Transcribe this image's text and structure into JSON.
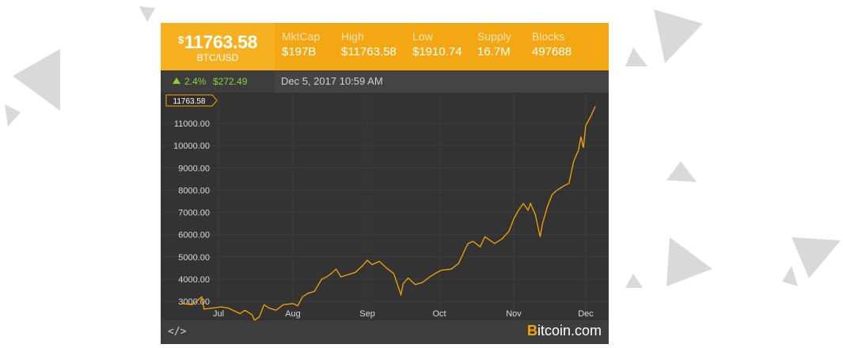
{
  "ticker": {
    "currency_symbol": "$",
    "price": "11763.58",
    "pair": "BTC/USD",
    "change_pct": "2.4%",
    "change_amt": "$272.49",
    "date": "Dec 5, 2017 10:59 AM",
    "stats": [
      {
        "label": "MktCap",
        "value": "$197B"
      },
      {
        "label": "High",
        "value": "$11763.58"
      },
      {
        "label": "Low",
        "value": "$1910.74"
      },
      {
        "label": "Supply",
        "value": "16.7M"
      },
      {
        "label": "Blocks",
        "value": "497688"
      }
    ]
  },
  "footer": {
    "embed_label": "</>",
    "brand_first": "B",
    "brand_rest": "itcoin.com"
  },
  "colors": {
    "accent": "#f3a712",
    "line": "#f7a600",
    "up": "#8fd034",
    "panel": "#333333"
  },
  "chart_data": {
    "type": "line",
    "title": "",
    "xlabel": "",
    "ylabel": "",
    "current_label": "11763.58",
    "y_ticks": [
      "3000.00",
      "4000.00",
      "5000.00",
      "6000.00",
      "7000.00",
      "8000.00",
      "9000.00",
      "10000.00",
      "11000.00"
    ],
    "x_labels": [
      "Jul",
      "Aug",
      "Sep",
      "Oct",
      "Nov",
      "Dec"
    ],
    "ylim": [
      2500,
      12000
    ],
    "grid": true,
    "series": [
      {
        "values": [
          [
            "2017-06-16",
            2900
          ],
          [
            "2017-06-20",
            2850
          ],
          [
            "2017-06-24",
            3200
          ],
          [
            "2017-06-25",
            2650
          ],
          [
            "2017-06-29",
            2700
          ],
          [
            "2017-07-02",
            2750
          ],
          [
            "2017-07-05",
            2700
          ],
          [
            "2017-07-10",
            2450
          ],
          [
            "2017-07-12",
            2600
          ],
          [
            "2017-07-15",
            2400
          ],
          [
            "2017-07-16",
            2000
          ],
          [
            "2017-07-18",
            2300
          ],
          [
            "2017-07-20",
            2850
          ],
          [
            "2017-07-22",
            2700
          ],
          [
            "2017-07-25",
            2600
          ],
          [
            "2017-07-28",
            2850
          ],
          [
            "2017-08-01",
            2900
          ],
          [
            "2017-08-03",
            2800
          ],
          [
            "2017-08-05",
            3200
          ],
          [
            "2017-08-07",
            3350
          ],
          [
            "2017-08-10",
            3450
          ],
          [
            "2017-08-13",
            4000
          ],
          [
            "2017-08-15",
            4100
          ],
          [
            "2017-08-17",
            4250
          ],
          [
            "2017-08-19",
            4450
          ],
          [
            "2017-08-21",
            4100
          ],
          [
            "2017-08-24",
            4200
          ],
          [
            "2017-08-27",
            4300
          ],
          [
            "2017-08-30",
            4600
          ],
          [
            "2017-09-01",
            4850
          ],
          [
            "2017-09-03",
            4650
          ],
          [
            "2017-09-06",
            4800
          ],
          [
            "2017-09-09",
            4500
          ],
          [
            "2017-09-12",
            4250
          ],
          [
            "2017-09-15",
            3300
          ],
          [
            "2017-09-16",
            3800
          ],
          [
            "2017-09-18",
            4050
          ],
          [
            "2017-09-21",
            3750
          ],
          [
            "2017-09-24",
            3850
          ],
          [
            "2017-09-27",
            4100
          ],
          [
            "2017-09-30",
            4300
          ],
          [
            "2017-10-02",
            4400
          ],
          [
            "2017-10-06",
            4450
          ],
          [
            "2017-10-09",
            4700
          ],
          [
            "2017-10-12",
            5400
          ],
          [
            "2017-10-13",
            5600
          ],
          [
            "2017-10-15",
            5700
          ],
          [
            "2017-10-18",
            5450
          ],
          [
            "2017-10-20",
            5900
          ],
          [
            "2017-10-24",
            5600
          ],
          [
            "2017-10-27",
            5800
          ],
          [
            "2017-10-30",
            6150
          ],
          [
            "2017-11-01",
            6700
          ],
          [
            "2017-11-03",
            7100
          ],
          [
            "2017-11-05",
            7400
          ],
          [
            "2017-11-07",
            7100
          ],
          [
            "2017-11-08",
            7400
          ],
          [
            "2017-11-10",
            6900
          ],
          [
            "2017-11-12",
            5900
          ],
          [
            "2017-11-13",
            6500
          ],
          [
            "2017-11-15",
            7250
          ],
          [
            "2017-11-17",
            7800
          ],
          [
            "2017-11-19",
            8000
          ],
          [
            "2017-11-22",
            8200
          ],
          [
            "2017-11-24",
            8300
          ],
          [
            "2017-11-26",
            9300
          ],
          [
            "2017-11-28",
            9800
          ],
          [
            "2017-11-29",
            10400
          ],
          [
            "2017-11-30",
            9900
          ],
          [
            "2017-12-01",
            10900
          ],
          [
            "2017-12-03",
            11300
          ],
          [
            "2017-12-05",
            11763.58
          ]
        ]
      }
    ]
  }
}
